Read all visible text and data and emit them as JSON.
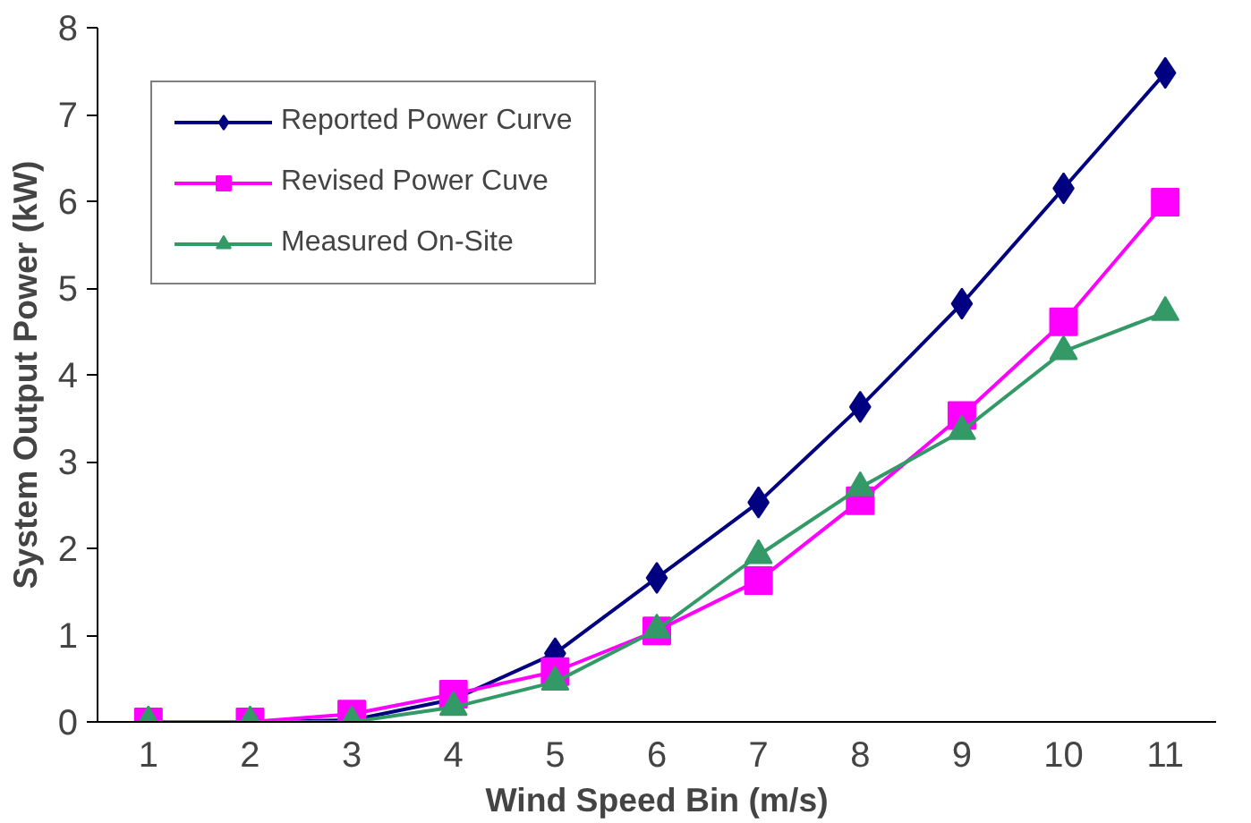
{
  "chart_data": {
    "type": "line",
    "xlabel": "Wind Speed Bin (m/s)",
    "ylabel": "System Output Power (kW)",
    "categories": [
      "1",
      "2",
      "3",
      "4",
      "5",
      "6",
      "7",
      "8",
      "9",
      "10",
      "11"
    ],
    "series": [
      {
        "name": "Reported Power Curve",
        "color": "#000080",
        "marker": "diamond",
        "values": [
          0,
          0,
          0.02,
          0.26,
          0.79,
          1.66,
          2.53,
          3.63,
          4.82,
          6.15,
          7.48
        ]
      },
      {
        "name": "Revised Power Cuve",
        "color": "#ff00ff",
        "marker": "square",
        "values": [
          0,
          0,
          0.09,
          0.32,
          0.58,
          1.05,
          1.63,
          2.55,
          3.53,
          4.61,
          5.99
        ]
      },
      {
        "name": "Measured On-Site",
        "color": "#339966",
        "marker": "triangle",
        "values": [
          0,
          0,
          0,
          0.17,
          0.46,
          1.06,
          1.92,
          2.7,
          3.35,
          4.27,
          4.72
        ]
      }
    ],
    "ylim": [
      0,
      8
    ],
    "yticks": [
      0,
      1,
      2,
      3,
      4,
      5,
      6,
      7,
      8
    ],
    "grid": false,
    "legend": "top left",
    "line_style": "solid"
  }
}
